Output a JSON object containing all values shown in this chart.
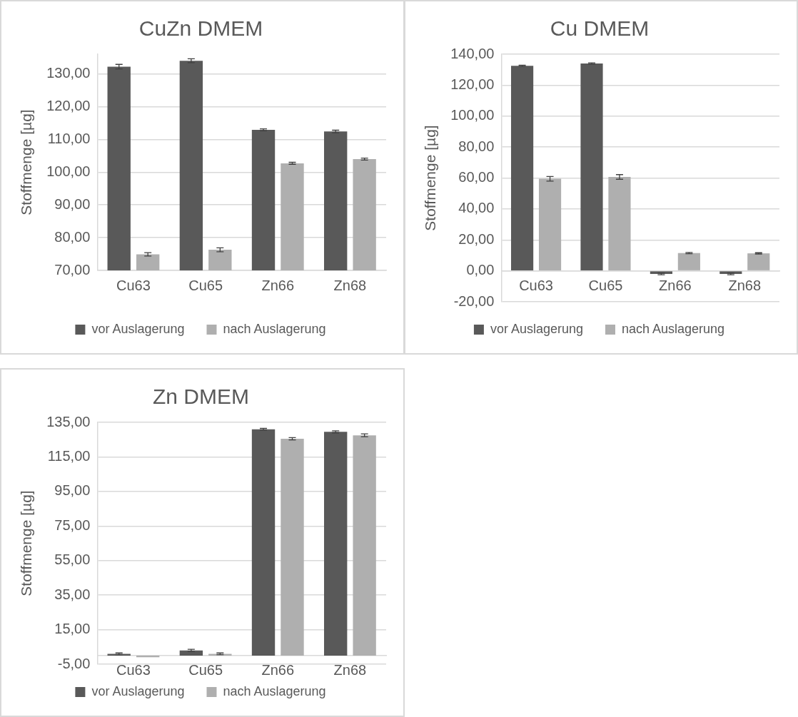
{
  "chart_data": [
    {
      "type": "bar",
      "title": "CuZn DMEM",
      "ylabel": "Stoffmenge [µg]",
      "categories": [
        "Cu63",
        "Cu65",
        "Zn66",
        "Zn68"
      ],
      "series": [
        {
          "name": "vor Auslagerung",
          "color": "#595959",
          "values": [
            132.2,
            134.0,
            112.9,
            112.4
          ],
          "errors": [
            0.7,
            0.6,
            0.3,
            0.4
          ]
        },
        {
          "name": "nach Auslagerung",
          "color": "#afafaf",
          "values": [
            74.9,
            76.3,
            102.7,
            104.0
          ],
          "errors": [
            0.5,
            0.6,
            0.3,
            0.3
          ]
        }
      ],
      "ylim": [
        70,
        136
      ],
      "yticks": [
        {
          "value": 70,
          "label": "70,00"
        },
        {
          "value": 80,
          "label": "80,00"
        },
        {
          "value": 90,
          "label": "90,00"
        },
        {
          "value": 100,
          "label": "100,00"
        },
        {
          "value": 110,
          "label": "110,00"
        },
        {
          "value": 120,
          "label": "120,00"
        },
        {
          "value": 130,
          "label": "130,00"
        }
      ],
      "grid": "y",
      "legend": "bottom"
    },
    {
      "type": "bar",
      "title": "Cu DMEM",
      "ylabel": "Stoffmenge [µg]",
      "categories": [
        "Cu63",
        "Cu65",
        "Zn66",
        "Zn68"
      ],
      "series": [
        {
          "name": "vor Auslagerung",
          "color": "#595959",
          "values": [
            132.5,
            134.0,
            -2.0,
            -2.0
          ],
          "errors": [
            0.4,
            0.4,
            0.5,
            0.5
          ]
        },
        {
          "name": "nach Auslagerung",
          "color": "#afafaf",
          "values": [
            59.5,
            60.7,
            11.5,
            11.3
          ],
          "errors": [
            1.5,
            1.5,
            0.4,
            0.4
          ]
        }
      ],
      "ylim": [
        -20,
        140
      ],
      "yticks": [
        {
          "value": -20,
          "label": "-20,00"
        },
        {
          "value": 0,
          "label": "0,00"
        },
        {
          "value": 20,
          "label": "20,00"
        },
        {
          "value": 40,
          "label": "40,00"
        },
        {
          "value": 60,
          "label": "60,00"
        },
        {
          "value": 80,
          "label": "80,00"
        },
        {
          "value": 100,
          "label": "100,00"
        },
        {
          "value": 120,
          "label": "120,00"
        },
        {
          "value": 140,
          "label": "140,00"
        }
      ],
      "grid": "y",
      "legend": "bottom"
    },
    {
      "type": "bar",
      "title": "Zn DMEM",
      "ylabel": "Stoffmenge [µg]",
      "categories": [
        "Cu63",
        "Cu65",
        "Zn66",
        "Zn68"
      ],
      "series": [
        {
          "name": "vor Auslagerung",
          "color": "#595959",
          "values": [
            1.0,
            3.0,
            131.0,
            129.5
          ],
          "errors": [
            0.5,
            0.6,
            0.5,
            0.6
          ]
        },
        {
          "name": "nach Auslagerung",
          "color": "#afafaf",
          "values": [
            -1.0,
            1.0,
            125.5,
            127.5
          ],
          "errors": [
            null,
            0.5,
            0.7,
            0.8
          ]
        }
      ],
      "ylim": [
        -5,
        135
      ],
      "yticks": [
        {
          "value": -5,
          "label": "-5,00"
        },
        {
          "value": 15,
          "label": "15,00"
        },
        {
          "value": 35,
          "label": "35,00"
        },
        {
          "value": 55,
          "label": "55,00"
        },
        {
          "value": 75,
          "label": "75,00"
        },
        {
          "value": 95,
          "label": "95,00"
        },
        {
          "value": 115,
          "label": "115,00"
        },
        {
          "value": 135,
          "label": "135,00"
        }
      ],
      "grid": "y",
      "legend": "bottom"
    }
  ]
}
